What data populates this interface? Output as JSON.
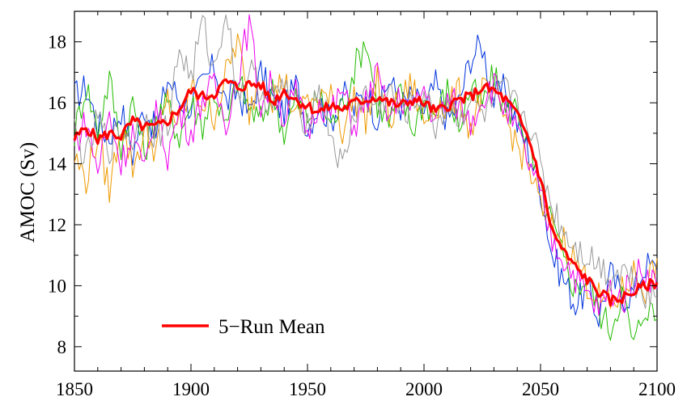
{
  "chart_data": {
    "type": "line",
    "title": "",
    "xlabel": "",
    "ylabel": "AMOC (Sv)",
    "xlim": [
      1850,
      2100
    ],
    "ylim": [
      7.2,
      19.0
    ],
    "xticks": [
      1850,
      1900,
      1950,
      2000,
      2050,
      2100
    ],
    "yticks": [
      8,
      10,
      12,
      14,
      16,
      18
    ],
    "grid": false,
    "legend": {
      "position": "bottom-left",
      "entries": [
        "5−Run Mean"
      ]
    },
    "colors": {
      "mean": "#ff0000",
      "runs": [
        "#0033dd",
        "#22bb00",
        "#ee9900",
        "#ee00ee",
        "#999999"
      ]
    },
    "series": [
      {
        "name": "5−Run Mean",
        "x": [
          1850,
          1855,
          1860,
          1865,
          1870,
          1875,
          1880,
          1885,
          1890,
          1895,
          1900,
          1905,
          1910,
          1915,
          1920,
          1925,
          1930,
          1935,
          1940,
          1945,
          1950,
          1955,
          1960,
          1965,
          1970,
          1975,
          1980,
          1985,
          1990,
          1995,
          2000,
          2005,
          2010,
          2015,
          2020,
          2025,
          2030,
          2035,
          2040,
          2045,
          2050,
          2055,
          2060,
          2065,
          2070,
          2075,
          2080,
          2085,
          2090,
          2095,
          2100
        ],
        "values": [
          14.8,
          15.2,
          14.8,
          15.0,
          14.9,
          15.4,
          15.2,
          15.2,
          15.4,
          15.8,
          16.4,
          16.2,
          16.3,
          16.7,
          16.5,
          16.6,
          16.6,
          16.0,
          16.4,
          16.1,
          15.9,
          15.7,
          15.9,
          15.8,
          16.0,
          16.1,
          16.2,
          16.0,
          15.9,
          16.1,
          16.0,
          15.7,
          15.9,
          16.1,
          16.2,
          16.5,
          16.4,
          16.1,
          15.6,
          14.8,
          13.5,
          11.8,
          11.1,
          10.6,
          10.2,
          9.8,
          9.5,
          9.6,
          9.8,
          10.0,
          10.1
        ]
      },
      {
        "x": [
          1850,
          1855,
          1860,
          1865,
          1870,
          1875,
          1880,
          1885,
          1890,
          1895,
          1900,
          1905,
          1910,
          1915,
          1920,
          1925,
          1930,
          1935,
          1940,
          1945,
          1950,
          1955,
          1960,
          1965,
          1970,
          1975,
          1980,
          1985,
          1990,
          1995,
          2000,
          2005,
          2010,
          2015,
          2020,
          2025,
          2030,
          2035,
          2040,
          2045,
          2050,
          2055,
          2060,
          2065,
          2070,
          2075,
          2080,
          2085,
          2090,
          2095,
          2100
        ],
        "values": [
          16.2,
          16.5,
          15.3,
          14.9,
          15.8,
          14.3,
          15.9,
          15.0,
          16.8,
          16.1,
          15.9,
          16.6,
          17.2,
          16.0,
          16.4,
          15.6,
          17.0,
          16.1,
          15.7,
          16.6,
          15.2,
          16.0,
          15.4,
          16.3,
          15.8,
          16.4,
          15.5,
          16.8,
          15.9,
          16.2,
          15.7,
          16.6,
          15.4,
          16.0,
          17.5,
          17.9,
          16.1,
          16.5,
          15.3,
          14.4,
          13.2,
          11.0,
          10.2,
          9.4,
          9.9,
          9.0,
          10.4,
          9.6,
          9.8,
          10.7,
          10.5
        ]
      },
      {
        "x": [
          1850,
          1855,
          1860,
          1865,
          1870,
          1875,
          1880,
          1885,
          1890,
          1895,
          1900,
          1905,
          1910,
          1915,
          1920,
          1925,
          1930,
          1935,
          1940,
          1945,
          1950,
          1955,
          1960,
          1965,
          1970,
          1975,
          1980,
          1985,
          1990,
          1995,
          2000,
          2005,
          2010,
          2015,
          2020,
          2025,
          2030,
          2035,
          2040,
          2045,
          2050,
          2055,
          2060,
          2065,
          2070,
          2075,
          2080,
          2085,
          2090,
          2095,
          2100
        ],
        "values": [
          15.0,
          16.6,
          15.1,
          16.8,
          14.6,
          16.0,
          14.4,
          15.6,
          15.9,
          14.9,
          16.0,
          15.3,
          16.4,
          15.1,
          16.8,
          15.8,
          15.4,
          16.4,
          15.0,
          16.1,
          15.5,
          16.2,
          15.3,
          15.9,
          17.1,
          18.1,
          16.0,
          15.3,
          16.3,
          15.1,
          16.1,
          15.6,
          16.4,
          15.2,
          16.5,
          15.9,
          16.9,
          15.7,
          15.9,
          14.5,
          13.0,
          12.0,
          10.8,
          9.9,
          10.3,
          9.2,
          8.6,
          9.8,
          8.0,
          9.4,
          8.9
        ]
      },
      {
        "x": [
          1850,
          1855,
          1860,
          1865,
          1870,
          1875,
          1880,
          1885,
          1890,
          1895,
          1900,
          1905,
          1910,
          1915,
          1920,
          1925,
          1930,
          1935,
          1940,
          1945,
          1950,
          1955,
          1960,
          1965,
          1970,
          1975,
          1980,
          1985,
          1990,
          1995,
          2000,
          2005,
          2010,
          2015,
          2020,
          2025,
          2030,
          2035,
          2040,
          2045,
          2050,
          2055,
          2060,
          2065,
          2070,
          2075,
          2080,
          2085,
          2090,
          2095,
          2100
        ],
        "values": [
          14.2,
          13.5,
          14.9,
          13.1,
          15.4,
          13.9,
          15.0,
          14.5,
          16.1,
          15.2,
          16.5,
          16.0,
          15.6,
          16.9,
          18.1,
          15.7,
          17.0,
          16.2,
          16.8,
          15.4,
          16.3,
          15.8,
          16.6,
          15.1,
          16.2,
          15.5,
          16.7,
          15.4,
          16.1,
          16.6,
          15.3,
          16.0,
          15.8,
          16.3,
          15.1,
          16.4,
          16.0,
          15.5,
          14.6,
          13.9,
          12.6,
          11.9,
          11.5,
          10.8,
          10.1,
          9.6,
          9.3,
          9.8,
          10.4,
          9.9,
          10.9
        ]
      },
      {
        "x": [
          1850,
          1855,
          1860,
          1865,
          1870,
          1875,
          1880,
          1885,
          1890,
          1895,
          1900,
          1905,
          1910,
          1915,
          1920,
          1925,
          1930,
          1935,
          1940,
          1945,
          1950,
          1955,
          1960,
          1965,
          1970,
          1975,
          1980,
          1985,
          1990,
          1995,
          2000,
          2005,
          2010,
          2015,
          2020,
          2025,
          2030,
          2035,
          2040,
          2045,
          2050,
          2055,
          2060,
          2065,
          2070,
          2075,
          2080,
          2085,
          2090,
          2095,
          2100
        ],
        "values": [
          14.6,
          15.4,
          13.8,
          15.6,
          14.0,
          15.1,
          13.6,
          15.9,
          14.3,
          15.7,
          15.0,
          16.2,
          16.5,
          15.4,
          16.9,
          18.6,
          15.9,
          16.7,
          15.5,
          16.3,
          15.0,
          16.1,
          15.6,
          16.4,
          15.2,
          16.0,
          16.9,
          15.5,
          16.2,
          15.7,
          16.5,
          15.4,
          16.1,
          15.9,
          15.4,
          16.2,
          16.6,
          15.8,
          15.0,
          14.0,
          12.9,
          11.5,
          10.9,
          10.3,
          9.7,
          9.2,
          9.9,
          9.5,
          10.3,
          10.6,
          9.9
        ]
      },
      {
        "x": [
          1850,
          1855,
          1860,
          1865,
          1870,
          1875,
          1880,
          1885,
          1890,
          1895,
          1900,
          1905,
          1910,
          1915,
          1920,
          1925,
          1930,
          1935,
          1940,
          1945,
          1950,
          1955,
          1960,
          1965,
          1970,
          1975,
          1980,
          1985,
          1990,
          1995,
          2000,
          2005,
          2010,
          2015,
          2020,
          2025,
          2030,
          2035,
          2040,
          2045,
          2050,
          2055,
          2060,
          2065,
          2070,
          2075,
          2080,
          2085,
          2090,
          2095,
          2100
        ],
        "values": [
          15.1,
          14.1,
          15.5,
          14.5,
          15.2,
          14.8,
          15.6,
          14.9,
          15.2,
          17.8,
          16.8,
          18.6,
          17.0,
          19.2,
          16.2,
          17.1,
          16.4,
          15.9,
          16.6,
          15.8,
          15.4,
          16.5,
          15.0,
          13.8,
          15.6,
          16.3,
          15.8,
          16.4,
          15.6,
          15.9,
          16.3,
          15.2,
          16.0,
          15.5,
          16.1,
          15.6,
          15.9,
          16.4,
          15.8,
          15.4,
          14.0,
          12.6,
          11.8,
          11.3,
          11.0,
          10.7,
          10.3,
          10.6,
          10.2,
          9.8,
          9.6
        ]
      }
    ]
  }
}
